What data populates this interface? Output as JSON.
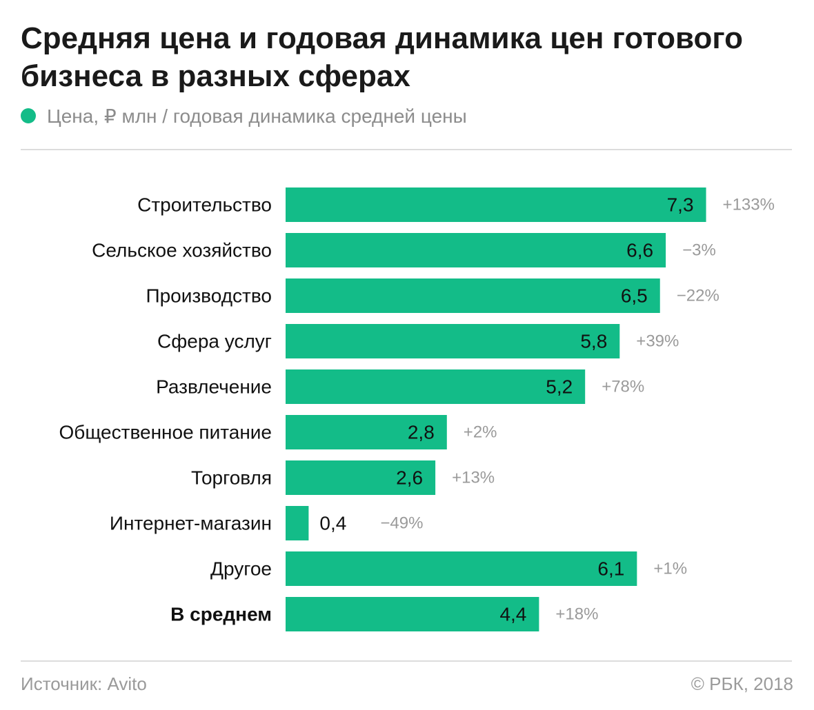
{
  "title": "Средняя цена и годовая динамика цен готового бизнеса в разных сферах",
  "legend": {
    "label": "Цена, ₽ млн / годовая динамика средней цены",
    "color": "#13bc88"
  },
  "footer": {
    "source": "Источник: Avito",
    "copyright": "© РБК, 2018"
  },
  "colors": {
    "bar": "#13bc88",
    "value_label": "#111111",
    "change_label": "#9a9a9a"
  },
  "chart_data": {
    "type": "bar",
    "orientation": "horizontal",
    "categories": [
      "Строительство",
      "Сельское хозяйство",
      "Производство",
      "Сфера услуг",
      "Развлечение",
      "Общественное питание",
      "Торговля",
      "Интернет-магазин",
      "Другое",
      "В среднем"
    ],
    "values": [
      7.3,
      6.6,
      6.5,
      5.8,
      5.2,
      2.8,
      2.6,
      0.4,
      6.1,
      4.4
    ],
    "value_labels": [
      "7,3",
      "6,6",
      "6,5",
      "5,8",
      "5,2",
      "2,8",
      "2,6",
      "0,4",
      "6,1",
      "4,4"
    ],
    "annual_change": [
      "+133%",
      "−3%",
      "−22%",
      "+39%",
      "+78%",
      "+2%",
      "+13%",
      "−49%",
      "+1%",
      "+18%"
    ],
    "highlighted_category": "В среднем",
    "grid": false,
    "legend_position": "top-left"
  }
}
